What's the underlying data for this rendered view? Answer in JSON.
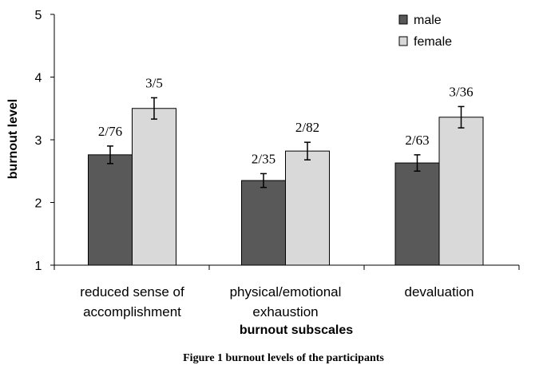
{
  "chart_data": {
    "type": "bar",
    "categories": [
      [
        "reduced sense of",
        "accomplishment"
      ],
      [
        "physical/emotional",
        "exhaustion"
      ],
      [
        "devaluation"
      ]
    ],
    "series": [
      {
        "name": "male",
        "color": "#595959",
        "values": [
          2.76,
          2.35,
          2.63
        ],
        "errors": [
          0.14,
          0.11,
          0.13
        ],
        "labels": [
          "2/76",
          "2/35",
          "2/63"
        ]
      },
      {
        "name": "female",
        "color": "#d9d9d9",
        "values": [
          3.5,
          2.82,
          3.36
        ],
        "errors": [
          0.17,
          0.14,
          0.17
        ],
        "labels": [
          "3/5",
          "2/82",
          "3/36"
        ]
      }
    ],
    "ylabel": "burnout level",
    "xlabel": "burnout subscales",
    "ylim": [
      1,
      5
    ],
    "yticks": [
      1,
      2,
      3,
      4,
      5
    ],
    "legend_position": "top-right",
    "caption": "Figure 1 burnout levels of the participants"
  }
}
